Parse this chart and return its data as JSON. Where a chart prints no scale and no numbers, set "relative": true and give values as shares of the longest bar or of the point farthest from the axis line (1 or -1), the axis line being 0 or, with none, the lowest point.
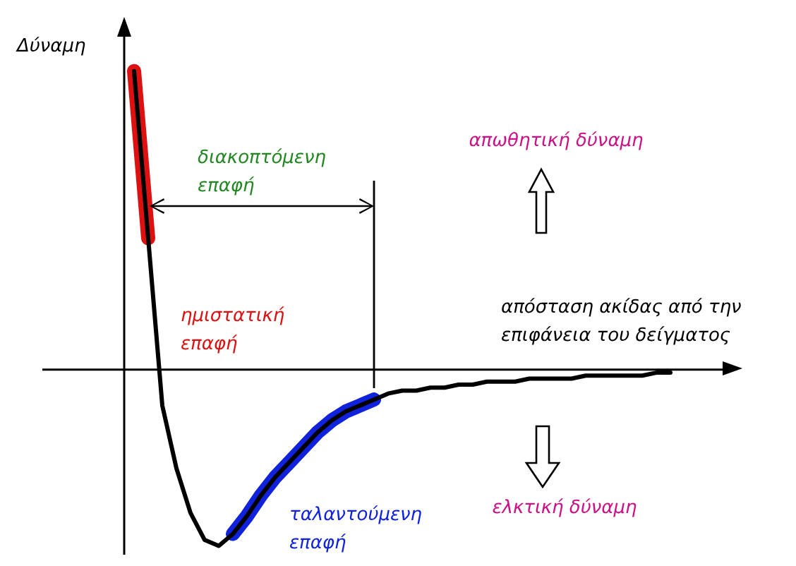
{
  "chart_data": {
    "type": "line",
    "relative": true,
    "marker": "none",
    "xlabel": "απόσταση ακίδας από την επιφάνεια του δείγματος",
    "ylabel": "Δύναμη",
    "annotations": [
      "διακοπτόμενη επαφή",
      "απωθητική δύναμη",
      "ελκτική δύναμη"
    ],
    "categories": [
      null,
      null,
      null,
      null,
      null,
      null,
      null,
      null,
      null,
      null,
      null,
      null,
      null,
      null,
      null,
      null,
      null,
      null,
      null,
      null,
      null,
      null,
      null,
      null,
      null,
      null,
      null,
      null,
      null,
      null,
      null,
      null,
      null,
      null,
      null,
      null,
      null,
      null,
      null
    ],
    "series": [
      {
        "color": "#000000",
        "values": [
          1,
          0.44,
          -0.12,
          -0.33,
          -0.48,
          -0.57,
          -0.59,
          -0.55,
          -0.49,
          -0.42,
          -0.36,
          -0.31,
          -0.26,
          -0.21,
          -0.17,
          -0.14,
          -0.12,
          -0.1,
          -0.08,
          -0.07,
          -0.07,
          -0.06,
          -0.06,
          -0.05,
          -0.05,
          -0.04,
          -0.04,
          -0.04,
          -0.03,
          -0.03,
          -0.03,
          -0.03,
          -0.02,
          -0.02,
          -0.02,
          -0.02,
          -0.02,
          -0.01,
          -0.01
        ]
      },
      {
        "name": "ημιστατική επαφή",
        "color": "#dd1111",
        "values": [
          1,
          0.44,
          null,
          null,
          null,
          null,
          null,
          null,
          null,
          null,
          null,
          null,
          null,
          null,
          null,
          null,
          null,
          null,
          null,
          null,
          null,
          null,
          null,
          null,
          null,
          null,
          null,
          null,
          null,
          null,
          null,
          null,
          null,
          null,
          null,
          null,
          null,
          null,
          null
        ]
      },
      {
        "name": "ταλαντούμενη επαφή",
        "color": "#1122dd",
        "values": [
          null,
          null,
          null,
          null,
          null,
          null,
          null,
          -0.55,
          -0.49,
          -0.42,
          -0.36,
          -0.31,
          -0.26,
          -0.21,
          -0.17,
          -0.14,
          -0.12,
          -0.1,
          null,
          null,
          null,
          null,
          null,
          null,
          null,
          null,
          null,
          null,
          null,
          null,
          null,
          null,
          null,
          null,
          null,
          null,
          null,
          null,
          null
        ]
      }
    ]
  }
}
